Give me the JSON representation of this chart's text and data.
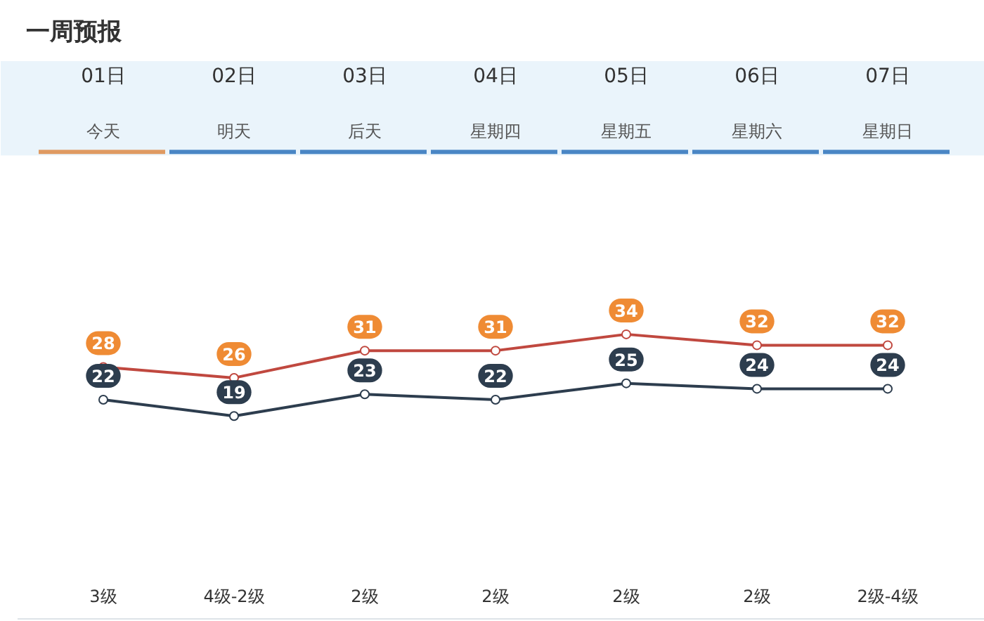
{
  "chart_data": {
    "type": "line",
    "title": "一周预报",
    "categories": [
      "01日",
      "02日",
      "03日",
      "04日",
      "05日",
      "06日",
      "07日"
    ],
    "series": [
      {
        "color": "#c0483f",
        "colors": [
          "#ef8b34",
          "#ef8b34",
          "#ef8b34",
          "#ef8b34",
          "#ef8b34",
          "#ef8b34",
          "#ef8b34"
        ],
        "values": [
          28,
          26,
          31,
          31,
          34,
          32,
          32
        ]
      },
      {
        "color": "#2d3d4e",
        "colors": [
          "#2d3d4e",
          "#2d3d4e",
          "#2d3d4e",
          "#2d3d4e",
          "#2d3d4e",
          "#2d3d4e",
          "#2d3d4e"
        ],
        "values": [
          22,
          19,
          23,
          22,
          25,
          24,
          24
        ]
      }
    ],
    "marker": "circle",
    "data_labels": true,
    "tick_labels": "x",
    "annotations": [
      "今天",
      "明天",
      "后天",
      "星期四",
      "星期五",
      "星期六",
      "星期日",
      "3级",
      "4级-2级",
      "2级",
      "2级",
      "2级",
      "2级",
      "2级-4级"
    ]
  }
}
